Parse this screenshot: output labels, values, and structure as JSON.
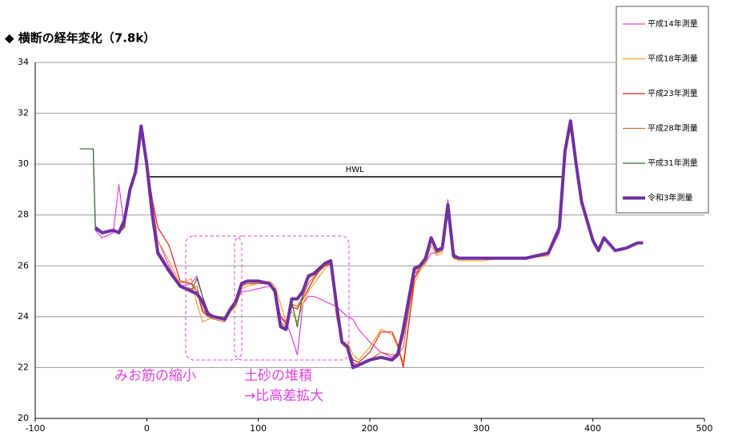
{
  "chart_data": {
    "type": "line",
    "title": "◆ 横断の経年変化（7.8k）",
    "xlim": [
      -100,
      500
    ],
    "xticks": [
      -100,
      0,
      100,
      200,
      300,
      400,
      500
    ],
    "ylim": [
      20,
      34
    ],
    "yticks": [
      20,
      22,
      24,
      26,
      28,
      30,
      32,
      34
    ],
    "grid": true,
    "legend": "top-right",
    "hwl": {
      "label": "HWL",
      "value": 29.5,
      "x": [
        0,
        373
      ]
    },
    "annotations": [
      "みお筋の縮小",
      "土砂の堆積",
      "→比高差拡大"
    ],
    "x": [
      -60,
      -48,
      -46,
      -40,
      -30,
      -25,
      -20,
      -15,
      -10,
      -5,
      0,
      5,
      10,
      20,
      30,
      40,
      45,
      50,
      55,
      60,
      70,
      75,
      80,
      85,
      90,
      100,
      110,
      115,
      120,
      125,
      130,
      135,
      140,
      145,
      150,
      155,
      160,
      165,
      170,
      175,
      180,
      185,
      190,
      200,
      210,
      220,
      225,
      230,
      240,
      245,
      250,
      255,
      260,
      265,
      270,
      275,
      280,
      300,
      320,
      340,
      360,
      370,
      375,
      380,
      385,
      390,
      400,
      405,
      410,
      420,
      430,
      440,
      445
    ],
    "series": [
      {
        "name": "平成14年測量",
        "color": "#e040e0",
        "width": 1.2,
        "values": [
          30.6,
          30.6,
          27.4,
          27.1,
          27.3,
          29.2,
          27.5,
          29.0,
          29.6,
          31.4,
          30.0,
          28.5,
          27.0,
          26.0,
          25.2,
          25.3,
          25.6,
          24.8,
          24.2,
          24.0,
          24.0,
          24.3,
          24.5,
          25.0,
          25.0,
          25.1,
          25.2,
          25.1,
          24.0,
          23.8,
          23.2,
          22.5,
          24.5,
          24.8,
          24.8,
          24.7,
          24.6,
          24.5,
          24.4,
          24.2,
          24.0,
          23.9,
          23.5,
          23.0,
          22.6,
          22.4,
          22.6,
          23.2,
          25.5,
          26.0,
          26.1,
          26.5,
          26.5,
          26.6,
          28.6,
          26.5,
          26.3,
          26.3,
          26.3,
          26.3,
          26.4,
          27.3,
          30.3,
          31.6,
          30.0,
          28.4,
          27.0,
          26.7,
          27.0,
          null,
          null,
          null,
          null
        ]
      },
      {
        "name": "平成18年測量",
        "color": "#f0a030",
        "width": 1.2,
        "values": [
          null,
          null,
          27.5,
          27.3,
          27.4,
          27.3,
          27.5,
          29.0,
          29.6,
          31.4,
          30.1,
          28.3,
          27.0,
          26.2,
          25.3,
          25.5,
          24.5,
          23.8,
          23.9,
          24.0,
          24.0,
          24.2,
          24.4,
          25.1,
          25.2,
          25.3,
          25.4,
          25.2,
          24.5,
          23.8,
          24.2,
          23.8,
          24.5,
          25.0,
          25.3,
          25.6,
          25.9,
          26.1,
          24.0,
          23.0,
          23.0,
          22.5,
          22.3,
          22.8,
          23.5,
          23.3,
          22.8,
          22.2,
          25.3,
          25.8,
          26.1,
          26.8,
          26.4,
          26.5,
          28.2,
          26.3,
          26.2,
          26.2,
          26.3,
          26.3,
          26.4,
          27.4,
          30.4,
          31.6,
          30.0,
          28.4,
          27.0,
          26.6,
          27.0,
          null,
          null,
          null,
          null
        ]
      },
      {
        "name": "平成23年測量",
        "color": "#e02020",
        "width": 1.2,
        "values": [
          null,
          null,
          27.5,
          27.3,
          27.4,
          27.3,
          27.5,
          29.0,
          29.6,
          31.4,
          30.1,
          28.6,
          27.5,
          26.8,
          25.4,
          25.3,
          25.0,
          24.2,
          24.0,
          24.0,
          23.9,
          24.2,
          24.5,
          25.2,
          25.3,
          25.3,
          25.3,
          25.1,
          24.0,
          23.7,
          24.4,
          24.3,
          24.7,
          25.1,
          25.5,
          25.8,
          26.0,
          26.1,
          24.2,
          23.0,
          22.8,
          22.3,
          22.2,
          22.6,
          23.4,
          23.4,
          22.9,
          22.0,
          25.5,
          25.9,
          26.2,
          27.0,
          26.5,
          26.6,
          28.3,
          26.3,
          26.3,
          26.3,
          26.3,
          26.3,
          26.5,
          27.5,
          30.5,
          31.7,
          30.0,
          28.5,
          27.0,
          26.6,
          27.0,
          null,
          null,
          null,
          null
        ]
      },
      {
        "name": "平成28年測量",
        "color": "#d07030",
        "width": 1.2,
        "values": [
          null,
          null,
          27.5,
          27.3,
          27.4,
          27.3,
          27.6,
          29.0,
          29.7,
          31.5,
          30.0,
          28.1,
          26.6,
          25.9,
          25.2,
          25.1,
          25.2,
          24.3,
          24.0,
          23.9,
          23.8,
          24.2,
          24.5,
          25.2,
          25.3,
          25.3,
          25.3,
          25.0,
          23.8,
          23.6,
          24.5,
          24.4,
          24.8,
          25.3,
          25.6,
          25.8,
          26.0,
          26.2,
          24.3,
          23.0,
          22.9,
          22.2,
          22.1,
          22.3,
          22.6,
          22.5,
          22.5,
          22.8,
          25.7,
          25.9,
          26.2,
          27.0,
          26.5,
          26.6,
          28.3,
          26.3,
          26.3,
          26.3,
          26.3,
          26.3,
          26.5,
          27.5,
          30.5,
          31.7,
          30.0,
          28.5,
          27.0,
          26.6,
          27.1,
          26.6,
          null,
          null,
          null
        ]
      },
      {
        "name": "平成31年測量",
        "color": "#2e6b2e",
        "width": 1.2,
        "values": [
          30.6,
          30.6,
          27.4,
          27.3,
          27.4,
          27.3,
          27.6,
          29.0,
          29.7,
          31.5,
          30.0,
          28.0,
          26.5,
          25.8,
          25.2,
          25.0,
          25.5,
          24.8,
          24.1,
          24.0,
          23.9,
          24.3,
          24.6,
          25.3,
          25.4,
          25.4,
          25.3,
          25.0,
          23.7,
          23.5,
          24.6,
          23.6,
          24.9,
          25.5,
          25.7,
          25.9,
          26.1,
          26.2,
          24.4,
          23.0,
          22.8,
          22.1,
          22.1,
          22.3,
          22.4,
          22.3,
          22.5,
          23.3,
          25.8,
          26.0,
          26.3,
          27.1,
          26.6,
          26.7,
          28.4,
          26.4,
          26.3,
          26.3,
          26.3,
          26.3,
          26.5,
          27.5,
          30.5,
          31.7,
          30.0,
          28.5,
          27.0,
          26.6,
          27.1,
          26.6,
          26.7,
          null,
          null
        ]
      },
      {
        "name": "令和3年測量",
        "color": "#7030a0",
        "width": 4,
        "values": [
          null,
          null,
          27.5,
          27.3,
          27.4,
          27.3,
          27.8,
          29.0,
          29.7,
          31.5,
          30.0,
          28.0,
          26.5,
          25.8,
          25.2,
          25.0,
          24.9,
          24.6,
          24.1,
          24.0,
          23.9,
          24.3,
          24.6,
          25.3,
          25.4,
          25.4,
          25.3,
          25.0,
          23.6,
          23.5,
          24.7,
          24.7,
          25.0,
          25.6,
          25.7,
          25.9,
          26.1,
          26.2,
          24.5,
          23.0,
          22.8,
          22.0,
          22.1,
          22.3,
          22.4,
          22.3,
          22.5,
          23.5,
          25.9,
          26.0,
          26.3,
          27.1,
          26.6,
          26.7,
          28.4,
          26.4,
          26.3,
          26.3,
          26.3,
          26.3,
          26.5,
          27.5,
          30.5,
          31.7,
          30.0,
          28.5,
          27.0,
          26.6,
          27.1,
          26.6,
          26.7,
          26.9,
          26.9
        ]
      }
    ]
  }
}
